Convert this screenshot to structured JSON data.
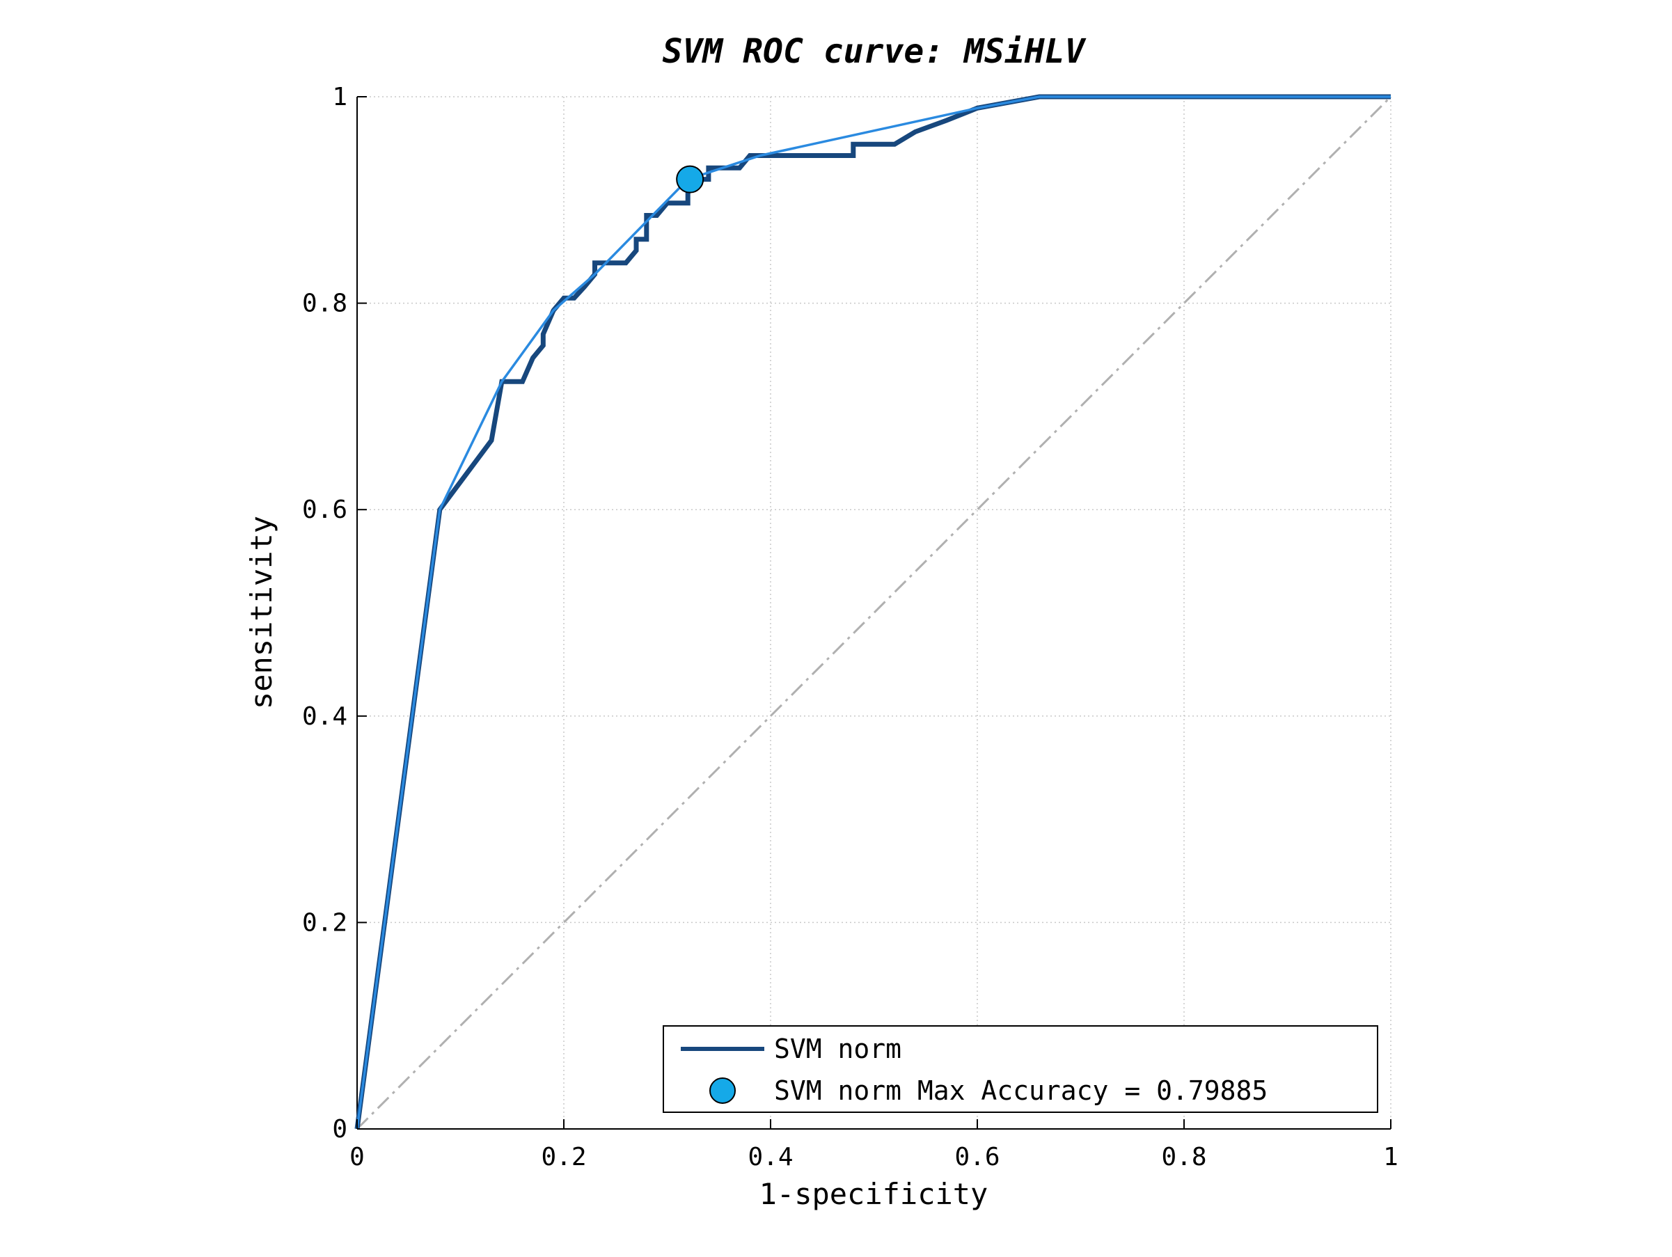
{
  "chart_data": {
    "type": "line",
    "title": "SVM ROC curve: MSiHLV",
    "xlabel": "1-specificity",
    "ylabel": "sensitivity",
    "xlim": [
      0,
      1
    ],
    "ylim": [
      0,
      1
    ],
    "xticks": [
      "0",
      "0.2",
      "0.4",
      "0.6",
      "0.8",
      "1"
    ],
    "yticks": [
      "0",
      "0.2",
      "0.4",
      "0.6",
      "0.8",
      "1"
    ],
    "grid": true,
    "legend_position": "bottom-right",
    "colors": {
      "roc": "#17477d",
      "hull": "#2a8ae0",
      "marker": "#15a9e8",
      "diagonal": "#b0b0b0"
    },
    "series": [
      {
        "name": "SVM norm",
        "style": "thick-dark-blue-step",
        "x": [
          0,
          0.08,
          0.13,
          0.14,
          0.16,
          0.17,
          0.18,
          0.18,
          0.19,
          0.2,
          0.21,
          0.22,
          0.23,
          0.23,
          0.24,
          0.26,
          0.27,
          0.27,
          0.28,
          0.28,
          0.29,
          0.3,
          0.3,
          0.32,
          0.32,
          0.33,
          0.34,
          0.34,
          0.37,
          0.38,
          0.39,
          0.48,
          0.48,
          0.52,
          0.54,
          0.57,
          0.6,
          0.66,
          1.0
        ],
        "y": [
          0,
          0.6,
          0.667,
          0.724,
          0.724,
          0.747,
          0.759,
          0.77,
          0.793,
          0.805,
          0.805,
          0.816,
          0.828,
          0.839,
          0.839,
          0.839,
          0.851,
          0.862,
          0.862,
          0.885,
          0.885,
          0.897,
          0.897,
          0.897,
          0.908,
          0.92,
          0.92,
          0.931,
          0.931,
          0.943,
          0.943,
          0.943,
          0.954,
          0.954,
          0.966,
          0.977,
          0.989,
          1.0,
          1.0
        ]
      },
      {
        "style": "thin-light-blue-hull",
        "x": [
          0,
          0.08,
          0.14,
          0.19,
          0.23,
          0.32,
          0.39,
          0.6,
          0.66,
          1.0
        ],
        "y": [
          0,
          0.6,
          0.724,
          0.793,
          0.828,
          0.92,
          0.943,
          0.989,
          1.0,
          1.0
        ]
      },
      {
        "style": "dash-dot-diagonal",
        "x": [
          0,
          1
        ],
        "y": [
          0,
          1
        ]
      }
    ],
    "points": [
      {
        "name": "SVM norm Max Accuracy = 0.79885",
        "x": 0.322,
        "y": 0.92
      }
    ]
  }
}
